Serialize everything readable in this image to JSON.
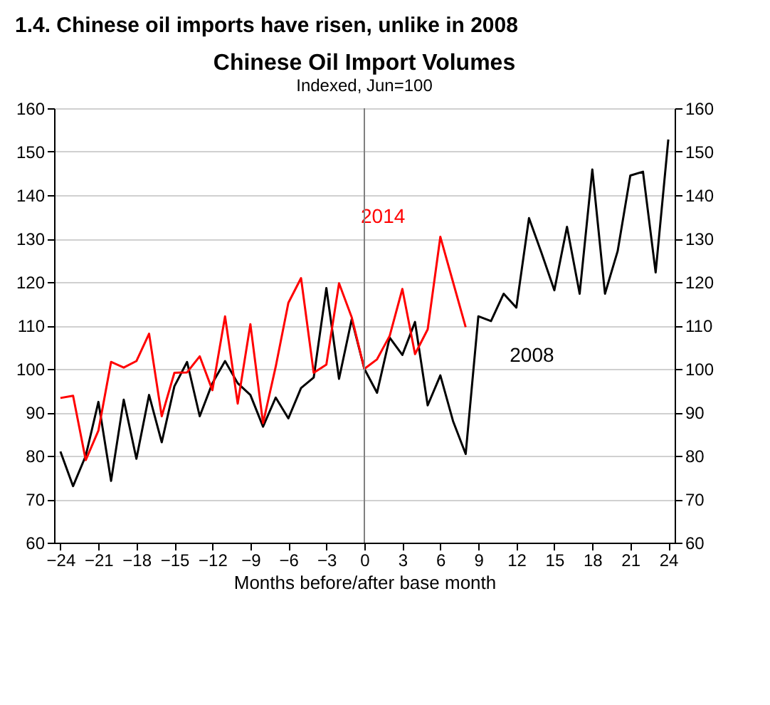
{
  "chart_data": {
    "type": "line",
    "title": "1.4. Chinese oil imports have risen, unlike in 2008",
    "subtitle": "Chinese Oil Import Volumes",
    "annotations": [
      "Indexed, Jun=100"
    ],
    "xlabel": "Months before/after base month",
    "x": [
      -24,
      -23,
      -22,
      -21,
      -20,
      -19,
      -18,
      -17,
      -16,
      -15,
      -14,
      -13,
      -12,
      -11,
      -10,
      -9,
      -8,
      -7,
      -6,
      -5,
      -4,
      -3,
      -2,
      -1,
      0,
      1,
      2,
      3,
      4,
      5,
      6,
      7,
      8,
      9,
      10,
      11,
      12,
      13,
      14,
      15,
      16,
      17,
      18,
      19,
      20,
      21,
      22,
      23,
      24
    ],
    "series": [
      {
        "name": "2008",
        "color": "#000000",
        "values": [
          81,
          73,
          80,
          92.4,
          74.2,
          92.9,
          79.3,
          94,
          83.1,
          96,
          101.6,
          89.1,
          96.7,
          101.8,
          96.7,
          94,
          86.7,
          93.4,
          88.6,
          95.6,
          98,
          118.6,
          97.7,
          111.4,
          100,
          94.5,
          107.2,
          103.2,
          110.8,
          91.6,
          98.5,
          88,
          80.4,
          112.1,
          111,
          117.3,
          114.1,
          134.7,
          126.6,
          118.1,
          132.7,
          117.3,
          145.9,
          117.3,
          127.1,
          144.5,
          145.4,
          122.2,
          152.8
        ]
      },
      {
        "name": "2014",
        "color": "#ff0000",
        "values": [
          93.3,
          93.8,
          79,
          85.8,
          101.6,
          100.3,
          101.8,
          108.1,
          89.1,
          99.1,
          99.2,
          102.9,
          95.1,
          112.1,
          92,
          110.3,
          87.5,
          100.5,
          115.2,
          120.9,
          99.1,
          101,
          119.7,
          111.9,
          100,
          102.2,
          107.6,
          118.4,
          103.4,
          109.1,
          130.4,
          120,
          109.6,
          null,
          null,
          null,
          null,
          null,
          null,
          null,
          null,
          null,
          null,
          null,
          null,
          null,
          null,
          null,
          null
        ]
      }
    ],
    "xlim": [
      -24.5,
      24.5
    ],
    "xticks": [
      -24,
      -21,
      -18,
      -15,
      -12,
      -9,
      -6,
      -3,
      0,
      3,
      6,
      9,
      12,
      15,
      18,
      21,
      24
    ],
    "ylim": [
      60,
      160
    ],
    "yticks": [
      60,
      70,
      80,
      90,
      100,
      110,
      120,
      130,
      140,
      150,
      160
    ],
    "y2lim": [
      60,
      160
    ],
    "y2ticks": [
      60,
      70,
      80,
      90,
      100,
      110,
      120,
      130,
      140,
      150,
      160
    ],
    "ref_lines": [
      {
        "axis": "x",
        "value": 0,
        "color": "#808080"
      }
    ],
    "grid": "y",
    "marker": "none",
    "line_style": "solid"
  }
}
